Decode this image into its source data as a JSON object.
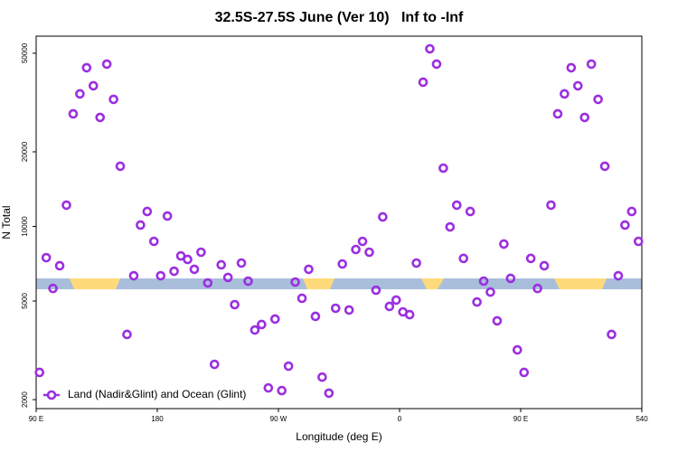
{
  "chart_data": {
    "type": "scatter",
    "title": "32.5S-27.5S June (Ver 10)   Inf to -Inf",
    "x_label": "Longitude (deg E)",
    "y_label": "N Total",
    "log_y": true,
    "xlim": [
      90,
      540
    ],
    "ylim": [
      1840,
      58600
    ],
    "xticks": [
      {
        "value": 90,
        "label": "90 E"
      },
      180,
      {
        "value": 270,
        "label": "90 W"
      },
      {
        "value": 360,
        "label": "0"
      },
      {
        "value": 450,
        "label": "90 E"
      },
      540
    ],
    "yticks": [
      2000,
      5000,
      10000,
      20000,
      50000
    ],
    "legend_position": "bottom-left",
    "series": [
      {
        "name": "Land (Nadir&Glint) and Ocean (Glint)",
        "color": "#9b2fe0",
        "x": [
          92.5,
          97.5,
          102.5,
          107.5,
          112.5,
          117.5,
          122.5,
          127.5,
          132.5,
          137.5,
          142.5,
          147.5,
          152.5,
          157.5,
          162.5,
          167.5,
          172.5,
          177.5,
          182.5,
          187.5,
          192.5,
          197.5,
          202.5,
          207.5,
          212.5,
          217.5,
          222.5,
          227.5,
          232.5,
          237.5,
          242.5,
          247.5,
          252.5,
          257.5,
          262.5,
          267.5,
          272.5,
          277.5,
          282.5,
          287.5,
          292.5,
          297.5,
          302.5,
          307.5,
          312.5,
          317.5,
          322.5,
          327.5,
          332.5,
          337.5,
          342.5,
          347.5,
          352.5,
          357.5,
          362.5,
          367.5,
          372.5,
          377.5,
          382.5,
          387.5,
          392.5,
          397.5,
          402.5,
          407.5,
          412.5,
          417.5,
          422.5,
          427.5,
          432.5,
          437.5,
          442.5,
          447.5,
          452.5,
          457.5,
          462.5,
          467.5,
          472.5,
          477.5,
          482.5,
          487.5,
          492.5,
          497.5,
          502.5,
          507.5,
          512.5,
          517.5,
          522.5,
          527.5,
          532.5,
          537.5
        ],
        "values": [
          2576,
          7480,
          5620,
          6940,
          12190,
          28460,
          34270,
          43700,
          36960,
          27540,
          45200,
          32570,
          17490,
          3665,
          6325,
          10130,
          11490,
          8705,
          6325,
          11015,
          6595,
          7605,
          7360,
          6715,
          7870,
          5915,
          2776,
          7000,
          6225,
          4835,
          7115,
          6015,
          3820,
          4020,
          2230,
          4230,
          2175,
          2730,
          5965,
          5130,
          6715,
          4335,
          2465,
          2124,
          4675,
          7055,
          4600,
          8070,
          8705,
          7870,
          5530,
          10925,
          4755,
          5045,
          4520,
          4405,
          7115,
          38200,
          52100,
          45200,
          17190,
          9955,
          12190,
          7430,
          11490,
          4955,
          6015,
          5435,
          4160,
          8490,
          6170,
          3175,
          2576,
          7430,
          5620,
          6940,
          12190,
          28460,
          34270,
          43700,
          36960,
          27540,
          45200,
          32570,
          17490,
          3665,
          6325,
          10130,
          11490,
          8705
        ]
      }
    ]
  }
}
